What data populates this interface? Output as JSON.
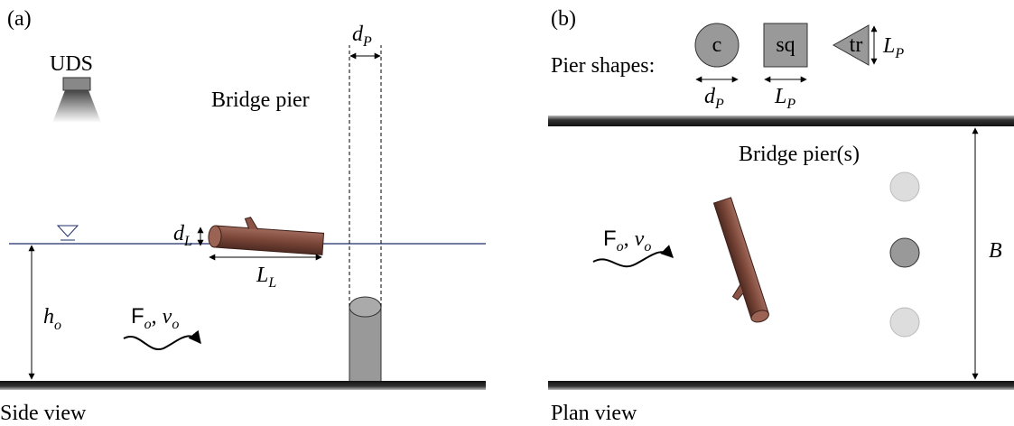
{
  "panel_a": {
    "label": "(a)",
    "uds": "UDS",
    "pier": "Bridge pier",
    "pier_width": {
      "base": "d",
      "sub": "P"
    },
    "log_diameter": {
      "base": "d",
      "sub": "L"
    },
    "log_length": {
      "base": "L",
      "sub": "L"
    },
    "depth": {
      "base": "h",
      "sub": "o"
    },
    "flow": {
      "force": "F",
      "force_sub": "o",
      "sep": ",",
      "velocity": "v",
      "velocity_sub": "o"
    },
    "caption": "Side view"
  },
  "panel_b": {
    "label": "(b)",
    "shapes_title": "Pier shapes:",
    "shapes": [
      {
        "label": "c",
        "dim": {
          "base": "d",
          "sub": "P"
        }
      },
      {
        "label": "sq",
        "dim": {
          "base": "L",
          "sub": "P"
        }
      },
      {
        "label": "tr",
        "dim": {
          "base": "L",
          "sub": "P"
        }
      }
    ],
    "piers": "Bridge pier(s)",
    "width": "B",
    "flow": {
      "force": "F",
      "force_sub": "o",
      "sep": ",",
      "velocity": "v",
      "velocity_sub": "o"
    },
    "caption": "Plan view"
  }
}
